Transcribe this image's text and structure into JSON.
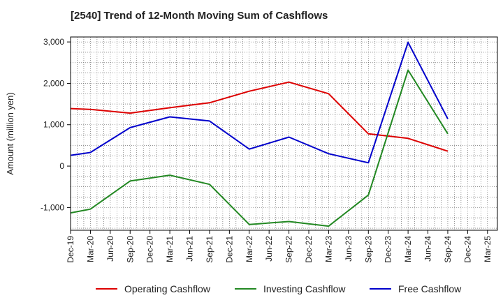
{
  "chart_data": {
    "type": "line",
    "title": "[2540]  Trend of 12-Month Moving Sum of Cashflows",
    "xlabel": "",
    "ylabel": "Amount (million yen)",
    "categories": [
      "Dec-19",
      "Mar-20",
      "Jun-20",
      "Sep-20",
      "Dec-20",
      "Mar-21",
      "Jun-21",
      "Sep-21",
      "Dec-21",
      "Mar-22",
      "Jun-22",
      "Sep-22",
      "Dec-22",
      "Mar-23",
      "Jun-23",
      "Sep-23",
      "Dec-23",
      "Mar-24",
      "Jun-24",
      "Sep-24",
      "Dec-24",
      "Mar-25"
    ],
    "ylim": [
      -1550,
      3120
    ],
    "yticks": [
      3000,
      2000,
      1000,
      0,
      -1000
    ],
    "ytick_labels": [
      "3,000",
      "2,000",
      "1,000",
      "0",
      "-1,000"
    ],
    "grid": true,
    "legend_position": "bottom",
    "series": [
      {
        "name": "Operating Cashflow",
        "color": "#dd0000",
        "values": [
          1390,
          1370,
          null,
          1280,
          null,
          1410,
          null,
          1530,
          null,
          1810,
          null,
          2030,
          null,
          1750,
          null,
          780,
          null,
          670,
          null,
          360,
          null,
          null
        ]
      },
      {
        "name": "Investing Cashflow",
        "color": "#228822",
        "values": [
          -1130,
          -1040,
          null,
          -360,
          null,
          -220,
          null,
          -440,
          null,
          -1410,
          null,
          -1340,
          null,
          -1450,
          null,
          -700,
          null,
          2320,
          null,
          780,
          null,
          null
        ]
      },
      {
        "name": "Free Cashflow",
        "color": "#0000cc",
        "values": [
          260,
          330,
          null,
          930,
          null,
          1190,
          null,
          1090,
          null,
          410,
          null,
          700,
          null,
          300,
          null,
          80,
          null,
          2990,
          null,
          1140,
          null,
          null
        ]
      }
    ]
  }
}
